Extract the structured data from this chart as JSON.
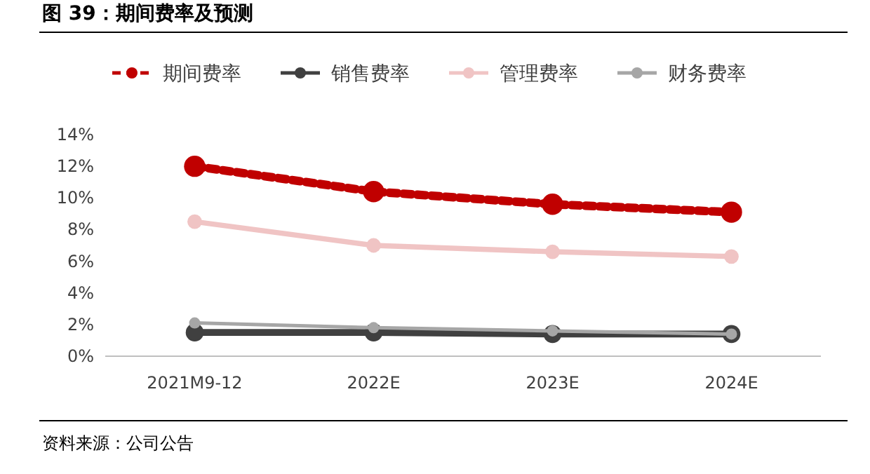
{
  "chart_data": {
    "type": "line",
    "title": "图 39：期间费率及预测",
    "categories": [
      "2021M9-12",
      "2022E",
      "2023E",
      "2024E"
    ],
    "series": [
      {
        "name": "期间费率",
        "color": "#c00000",
        "values": [
          12.0,
          10.4,
          9.6,
          9.1
        ],
        "line_style": "dashed"
      },
      {
        "name": "销售费率",
        "color": "#404040",
        "values": [
          1.5,
          1.5,
          1.4,
          1.4
        ]
      },
      {
        "name": "管理费率",
        "color": "#f0c4c4",
        "values": [
          8.5,
          7.0,
          6.6,
          6.3
        ]
      },
      {
        "name": "财务费率",
        "color": "#a6a6a6",
        "values": [
          2.1,
          1.8,
          1.6,
          1.4
        ]
      }
    ],
    "ylim": [
      0,
      14
    ],
    "yticks": [
      {
        "value": 0,
        "label": "0%"
      },
      {
        "value": 2,
        "label": "2%"
      },
      {
        "value": 4,
        "label": "4%"
      },
      {
        "value": 6,
        "label": "6%"
      },
      {
        "value": 8,
        "label": "8%"
      },
      {
        "value": 10,
        "label": "10%"
      },
      {
        "value": 12,
        "label": "12%"
      },
      {
        "value": 14,
        "label": "14%"
      }
    ],
    "marker": "circle",
    "legend": "top",
    "grid": false,
    "annotations": [
      "资料来源：公司公告"
    ]
  }
}
